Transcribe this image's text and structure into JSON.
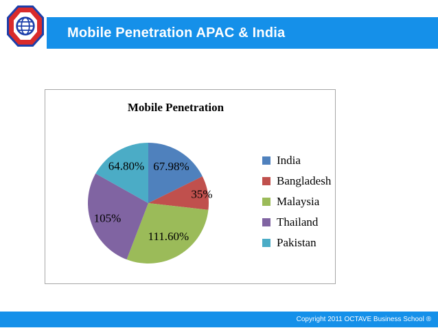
{
  "header": {
    "title": "Mobile Penetration APAC & India"
  },
  "logo": {
    "icon": "globe-icon",
    "outer_color": "#1c3faa",
    "ring_color": "#d92b2b"
  },
  "colors": {
    "accent_blue": "#1590e9"
  },
  "chart_data": {
    "type": "pie",
    "title": "Mobile Penetration",
    "categories": [
      "India",
      "Bangladesh",
      "Malaysia",
      "Thailand",
      "Pakistan"
    ],
    "values": [
      67.98,
      35,
      111.6,
      105,
      64.8
    ],
    "labels": [
      "67.98%",
      "35%",
      "111.60%",
      "105%",
      "64.80%"
    ],
    "colors": [
      "#4f81bd",
      "#c0504d",
      "#9bbb59",
      "#8064a2",
      "#4bacc6"
    ],
    "legend_position": "right",
    "start_angle_deg": 0,
    "direction": "clockwise",
    "label_radius_frac": [
      0.72,
      0.9,
      0.64,
      0.72,
      0.72
    ]
  },
  "footer": {
    "copyright": "Copyright 2011   OCTAVE Business School ®"
  }
}
